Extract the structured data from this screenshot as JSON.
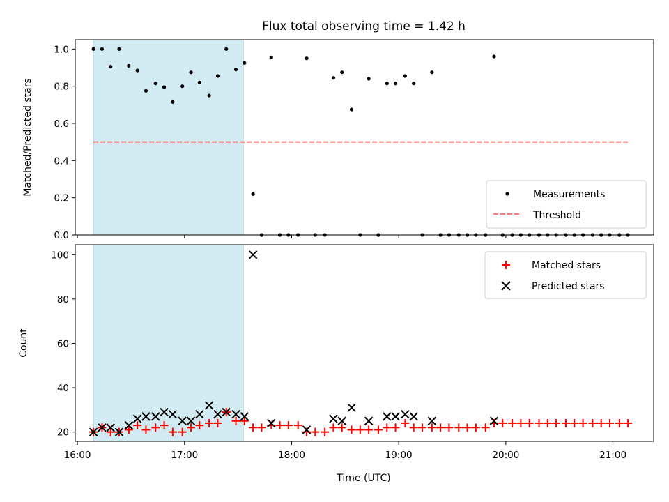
{
  "chart_data": {
    "title": "Flux total observing time = 1.42 h",
    "type": "scatter",
    "xlabel": "Time (UTC)",
    "x_ticks": [
      {
        "value": 16,
        "label": "16:00"
      },
      {
        "value": 17,
        "label": "17:00"
      },
      {
        "value": 18,
        "label": "18:00"
      },
      {
        "value": 19,
        "label": "19:00"
      },
      {
        "value": 20,
        "label": "20:00"
      },
      {
        "value": 21,
        "label": "21:00"
      }
    ],
    "xlim": [
      15.98,
      21.38
    ],
    "shaded_span": [
      16.15,
      17.55
    ],
    "shade_color": "#add8e6",
    "top": {
      "ylabel": "Matched/Predicted stars",
      "ylim": [
        0,
        1.05
      ],
      "y_ticks": [
        {
          "value": 0,
          "label": "0.0"
        },
        {
          "value": 0.2,
          "label": "0.2"
        },
        {
          "value": 0.4,
          "label": "0.4"
        },
        {
          "value": 0.6,
          "label": "0.6"
        },
        {
          "value": 0.8,
          "label": "0.8"
        },
        {
          "value": 1.0,
          "label": "1.0"
        }
      ],
      "threshold": {
        "name": "Threshold",
        "y": 0.5,
        "x": [
          16.15,
          21.15
        ],
        "color": "#ff7575"
      },
      "measurements": {
        "name": "Measurements",
        "color": "#000000",
        "points": [
          [
            16.15,
            1.0
          ],
          [
            16.23,
            1.0
          ],
          [
            16.31,
            0.905
          ],
          [
            16.39,
            1.0
          ],
          [
            16.48,
            0.91
          ],
          [
            16.56,
            0.885
          ],
          [
            16.64,
            0.775
          ],
          [
            16.73,
            0.815
          ],
          [
            16.81,
            0.795
          ],
          [
            16.89,
            0.715
          ],
          [
            16.98,
            0.8
          ],
          [
            17.06,
            0.875
          ],
          [
            17.14,
            0.82
          ],
          [
            17.23,
            0.75
          ],
          [
            17.31,
            0.855
          ],
          [
            17.39,
            1.0
          ],
          [
            17.48,
            0.89
          ],
          [
            17.56,
            0.925
          ],
          [
            17.64,
            0.22
          ],
          [
            17.72,
            0.0
          ],
          [
            17.81,
            0.955
          ],
          [
            17.89,
            0.0
          ],
          [
            17.97,
            0.0
          ],
          [
            18.06,
            0.0
          ],
          [
            18.14,
            0.95
          ],
          [
            18.22,
            0.0
          ],
          [
            18.31,
            0.0
          ],
          [
            18.39,
            0.845
          ],
          [
            18.47,
            0.875
          ],
          [
            18.56,
            0.675
          ],
          [
            18.64,
            0.0
          ],
          [
            18.72,
            0.84
          ],
          [
            18.81,
            0.0
          ],
          [
            18.89,
            0.815
          ],
          [
            18.97,
            0.815
          ],
          [
            19.06,
            0.855
          ],
          [
            19.14,
            0.815
          ],
          [
            19.22,
            0.0
          ],
          [
            19.31,
            0.875
          ],
          [
            19.39,
            0.0
          ],
          [
            19.47,
            0.0
          ],
          [
            19.56,
            0.0
          ],
          [
            19.64,
            0.0
          ],
          [
            19.72,
            0.0
          ],
          [
            19.81,
            0.0
          ],
          [
            19.89,
            0.96
          ],
          [
            19.97,
            0.0
          ],
          [
            20.06,
            0.0
          ],
          [
            20.14,
            0.0
          ],
          [
            20.22,
            0.0
          ],
          [
            20.31,
            0.0
          ],
          [
            20.39,
            0.0
          ],
          [
            20.47,
            0.0
          ],
          [
            20.56,
            0.0
          ],
          [
            20.64,
            0.0
          ],
          [
            20.72,
            0.0
          ],
          [
            20.81,
            0.0
          ],
          [
            20.89,
            0.0
          ],
          [
            20.97,
            0.0
          ],
          [
            21.06,
            0.0
          ],
          [
            21.14,
            0.0
          ]
        ]
      }
    },
    "bottom": {
      "ylabel": "Count",
      "ylim": [
        15.8,
        104.5
      ],
      "y_ticks": [
        {
          "value": 20,
          "label": "20"
        },
        {
          "value": 40,
          "label": "40"
        },
        {
          "value": 60,
          "label": "60"
        },
        {
          "value": 80,
          "label": "80"
        },
        {
          "value": 100,
          "label": "100"
        }
      ],
      "series": [
        {
          "name": "Matched stars",
          "marker": "plus",
          "color": "#ff0000",
          "points": [
            [
              16.15,
              20
            ],
            [
              16.23,
              22
            ],
            [
              16.31,
              20
            ],
            [
              16.39,
              20
            ],
            [
              16.48,
              21
            ],
            [
              16.56,
              23
            ],
            [
              16.64,
              21
            ],
            [
              16.73,
              22
            ],
            [
              16.81,
              23
            ],
            [
              16.89,
              20
            ],
            [
              16.98,
              20
            ],
            [
              17.06,
              22
            ],
            [
              17.14,
              23
            ],
            [
              17.23,
              24
            ],
            [
              17.31,
              24
            ],
            [
              17.39,
              29
            ],
            [
              17.48,
              25
            ],
            [
              17.56,
              25
            ],
            [
              17.64,
              22
            ],
            [
              17.72,
              22
            ],
            [
              17.81,
              23
            ],
            [
              17.89,
              23
            ],
            [
              17.97,
              23
            ],
            [
              18.06,
              23
            ],
            [
              18.14,
              20
            ],
            [
              18.22,
              20
            ],
            [
              18.31,
              20
            ],
            [
              18.39,
              22
            ],
            [
              18.47,
              22
            ],
            [
              18.56,
              21
            ],
            [
              18.64,
              21
            ],
            [
              18.72,
              21
            ],
            [
              18.81,
              21
            ],
            [
              18.89,
              22
            ],
            [
              18.97,
              22
            ],
            [
              19.06,
              24
            ],
            [
              19.14,
              22
            ],
            [
              19.22,
              22
            ],
            [
              19.31,
              22
            ],
            [
              19.39,
              22
            ],
            [
              19.47,
              22
            ],
            [
              19.56,
              22
            ],
            [
              19.64,
              22
            ],
            [
              19.72,
              22
            ],
            [
              19.81,
              22
            ],
            [
              19.89,
              24
            ],
            [
              19.97,
              24
            ],
            [
              20.06,
              24
            ],
            [
              20.14,
              24
            ],
            [
              20.22,
              24
            ],
            [
              20.31,
              24
            ],
            [
              20.39,
              24
            ],
            [
              20.47,
              24
            ],
            [
              20.56,
              24
            ],
            [
              20.64,
              24
            ],
            [
              20.72,
              24
            ],
            [
              20.81,
              24
            ],
            [
              20.89,
              24
            ],
            [
              20.97,
              24
            ],
            [
              21.06,
              24
            ],
            [
              21.14,
              24
            ]
          ]
        },
        {
          "name": "Predicted stars",
          "marker": "x",
          "color": "#000000",
          "points": [
            [
              16.15,
              20
            ],
            [
              16.23,
              22
            ],
            [
              16.31,
              22
            ],
            [
              16.39,
              20
            ],
            [
              16.48,
              23
            ],
            [
              16.56,
              26
            ],
            [
              16.64,
              27
            ],
            [
              16.73,
              27
            ],
            [
              16.81,
              29
            ],
            [
              16.89,
              28
            ],
            [
              16.98,
              25
            ],
            [
              17.06,
              25
            ],
            [
              17.14,
              28
            ],
            [
              17.23,
              32
            ],
            [
              17.31,
              28
            ],
            [
              17.39,
              29
            ],
            [
              17.48,
              28
            ],
            [
              17.56,
              27
            ],
            [
              17.64,
              100
            ],
            [
              17.81,
              24
            ],
            [
              18.14,
              21
            ],
            [
              18.39,
              26
            ],
            [
              18.47,
              25
            ],
            [
              18.56,
              31
            ],
            [
              18.72,
              25
            ],
            [
              18.89,
              27
            ],
            [
              18.97,
              27
            ],
            [
              19.06,
              28
            ],
            [
              19.14,
              27
            ],
            [
              19.31,
              25
            ],
            [
              19.89,
              25
            ]
          ]
        }
      ]
    }
  }
}
